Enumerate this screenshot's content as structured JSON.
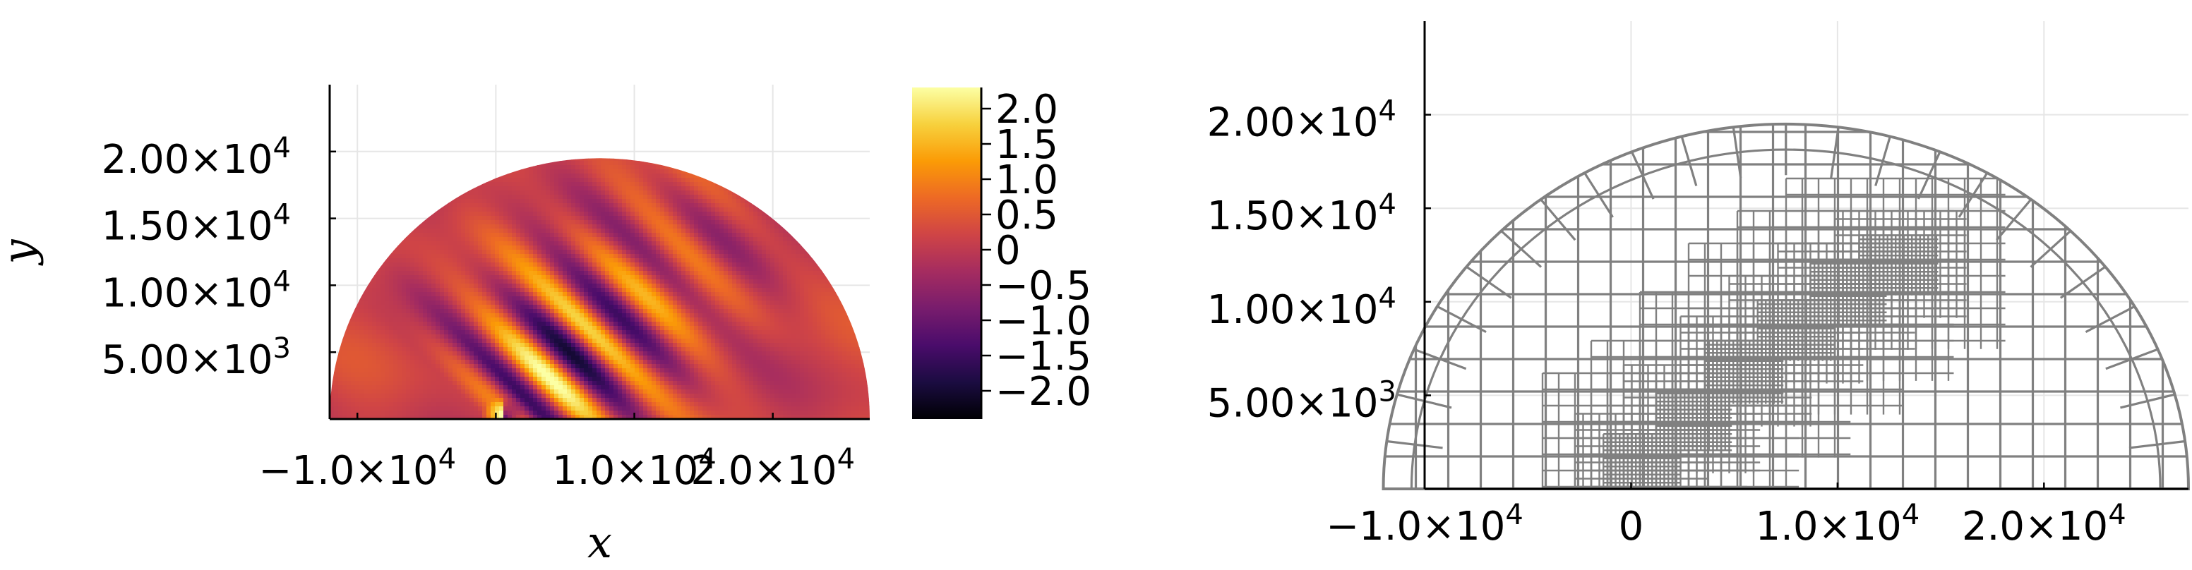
{
  "chart_data": [
    {
      "type": "heatmap",
      "title": "",
      "xlabel": "x",
      "ylabel": "y",
      "xlim": [
        -12000,
        27000
      ],
      "ylim": [
        0,
        25000
      ],
      "x_ticks": [
        {
          "value": -10000,
          "mantissa": "−1.0×10",
          "exp": "4"
        },
        {
          "value": 0,
          "mantissa": "0",
          "exp": ""
        },
        {
          "value": 10000,
          "mantissa": "1.0×10",
          "exp": "4"
        },
        {
          "value": 20000,
          "mantissa": "2.0×10",
          "exp": "4"
        }
      ],
      "y_ticks": [
        {
          "value": 5000,
          "mantissa": "5.00×10",
          "exp": "3"
        },
        {
          "value": 10000,
          "mantissa": "1.00×10",
          "exp": "4"
        },
        {
          "value": 15000,
          "mantissa": "1.50×10",
          "exp": "4"
        },
        {
          "value": 20000,
          "mantissa": "2.00×10",
          "exp": "4"
        }
      ],
      "domain": {
        "shape": "half-disk",
        "center": [
          7500,
          0
        ],
        "radius": 19500
      },
      "field": {
        "description_hidden": false,
        "wave_direction_deg": 45,
        "wavelength": 4600,
        "source": [
          500,
          0
        ]
      },
      "colorbar": {
        "colormap": "inferno",
        "range": [
          -2.4,
          2.3
        ],
        "ticks": [
          "2.0",
          "1.5",
          "1.0",
          "0.5",
          "0",
          "−0.5",
          "−1.0",
          "−1.5",
          "−2.0"
        ],
        "tick_values": [
          2.0,
          1.5,
          1.0,
          0.5,
          0,
          -0.5,
          -1.0,
          -1.5,
          -2.0
        ],
        "colors": [
          "#000004",
          "#1b0c41",
          "#4a0c6b",
          "#781c6d",
          "#a52c60",
          "#cf4446",
          "#ed6925",
          "#fb9b06",
          "#f7d13d",
          "#fcffa4"
        ]
      },
      "grid": true,
      "legend": "none"
    },
    {
      "type": "mesh",
      "title": "",
      "xlabel": "",
      "ylabel": "",
      "xlim": [
        -10000,
        27000
      ],
      "ylim": [
        0,
        25000
      ],
      "x_ticks": [
        {
          "value": -10000,
          "mantissa": "−1.0×10",
          "exp": "4"
        },
        {
          "value": 0,
          "mantissa": "0",
          "exp": ""
        },
        {
          "value": 10000,
          "mantissa": "1.0×10",
          "exp": "4"
        },
        {
          "value": 20000,
          "mantissa": "2.0×10",
          "exp": "4"
        }
      ],
      "y_ticks": [
        {
          "value": 5000,
          "mantissa": "5.00×10",
          "exp": "3"
        },
        {
          "value": 10000,
          "mantissa": "1.00×10",
          "exp": "4"
        },
        {
          "value": 15000,
          "mantissa": "1.50×10",
          "exp": "4"
        },
        {
          "value": 20000,
          "mantissa": "2.00×10",
          "exp": "4"
        }
      ],
      "domain": {
        "shape": "half-disk",
        "center": [
          7500,
          0
        ],
        "radius": 19500
      },
      "mesh_color": "#808080",
      "refinement_centers": [
        [
          500,
          1300
        ],
        [
          3000,
          3700
        ],
        [
          5500,
          6200
        ],
        [
          8000,
          8500
        ],
        [
          10500,
          10300
        ],
        [
          13000,
          12000
        ]
      ],
      "grid": true,
      "legend": "none"
    }
  ]
}
